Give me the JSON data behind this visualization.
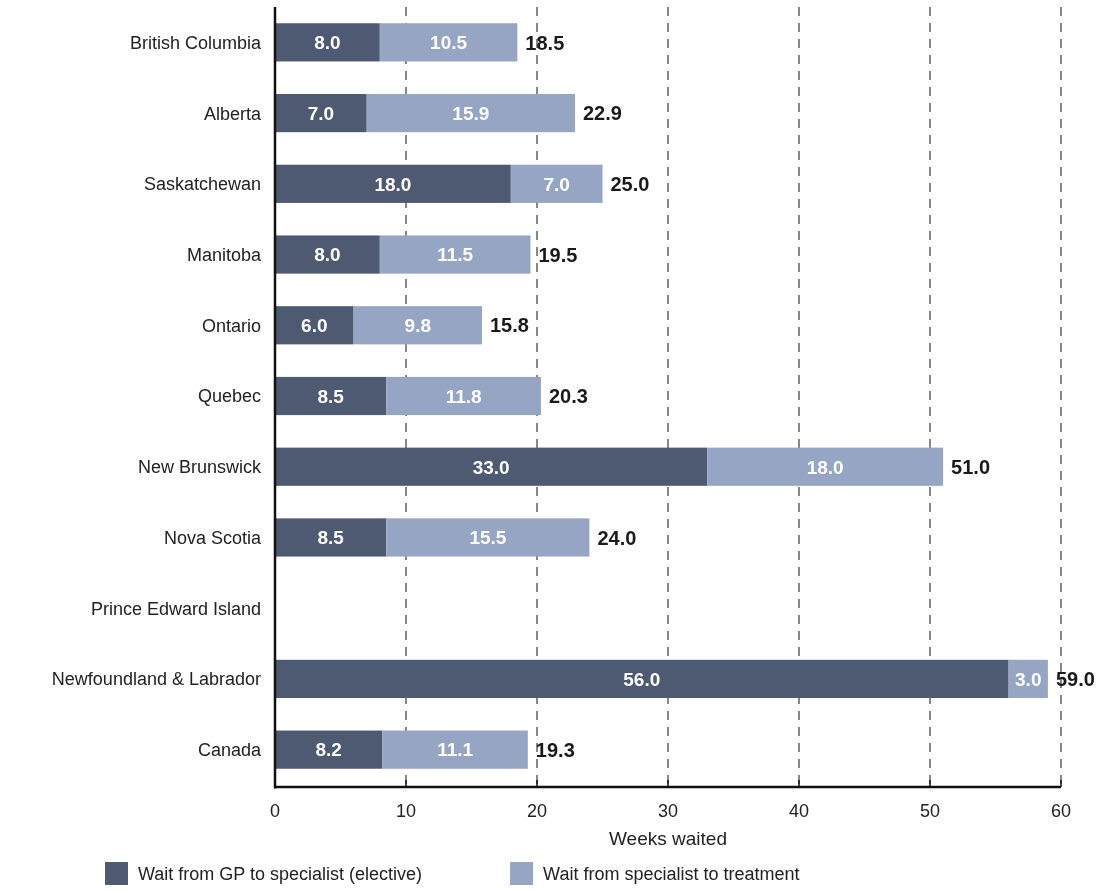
{
  "chart_data": {
    "type": "bar",
    "orientation": "horizontal",
    "stacked": true,
    "categories": [
      "British Columbia",
      "Alberta",
      "Saskatchewan",
      "Manitoba",
      "Ontario",
      "Quebec",
      "New Brunswick",
      "Nova Scotia",
      "Prince Edward Island",
      "Newfoundland & Labrador",
      "Canada"
    ],
    "series": [
      {
        "name": "Wait from GP to specialist (elective)",
        "color": "#4d5a72",
        "values": [
          8.0,
          7.0,
          18.0,
          8.0,
          6.0,
          8.5,
          33.0,
          8.5,
          null,
          56.0,
          8.2
        ],
        "value_labels": [
          "8.0",
          "7.0",
          "18.0",
          "8.0",
          "6.0",
          "8.5",
          "33.0",
          "8.5",
          null,
          "56.0",
          "8.2"
        ]
      },
      {
        "name": "Wait from specialist to treatment",
        "color": "#96a5c4",
        "values": [
          10.5,
          15.9,
          7.0,
          11.5,
          9.8,
          11.8,
          18.0,
          15.5,
          null,
          3.0,
          11.1
        ],
        "value_labels": [
          "10.5",
          "15.9",
          "7.0",
          "11.5",
          "9.8",
          "11.8",
          "18.0",
          "15.5",
          null,
          "3.0",
          "11.1"
        ]
      }
    ],
    "totals": [
      "18.5",
      "22.9",
      "25.0",
      "19.5",
      "15.8",
      "20.3",
      "51.0",
      "24.0",
      null,
      "59.0",
      "19.3"
    ],
    "xlabel": "Weeks waited",
    "xlim": [
      0,
      60
    ],
    "xticks": [
      0,
      10,
      20,
      30,
      40,
      50,
      60
    ],
    "grid": "x",
    "legend": "bottom"
  }
}
